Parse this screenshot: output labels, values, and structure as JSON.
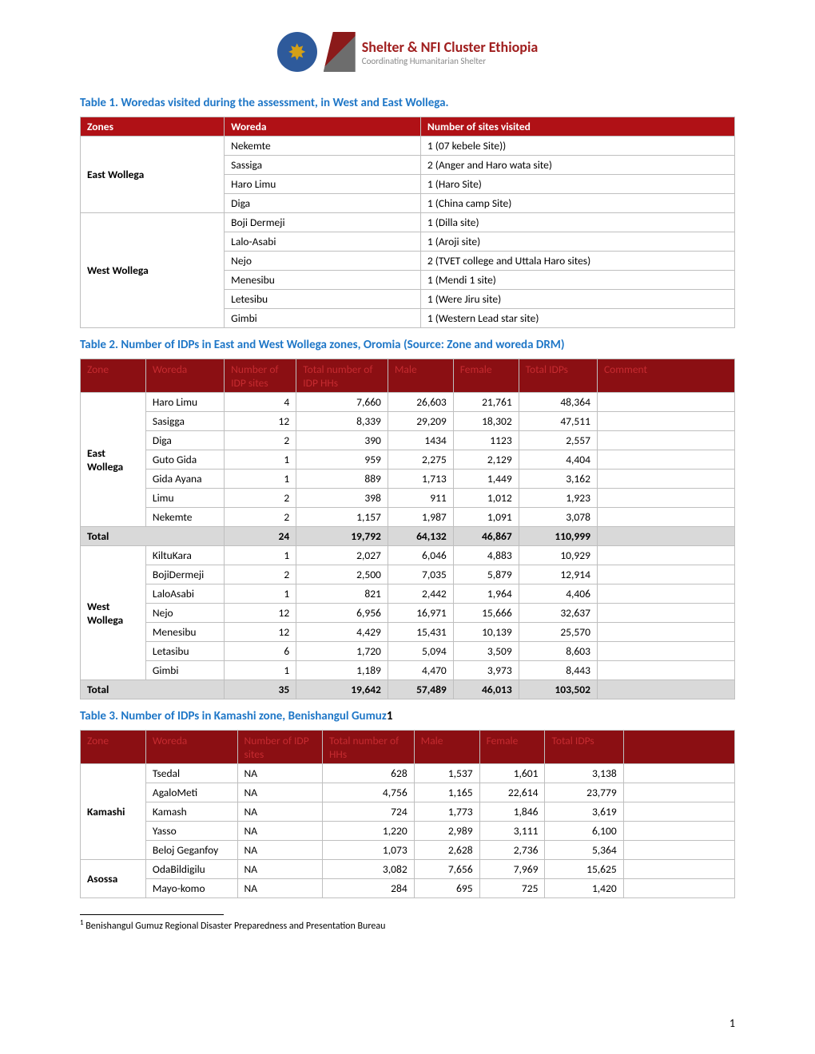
{
  "logo": {
    "title": "Shelter & NFI Cluster Ethiopia",
    "subtitle": "Coordinating Humanitarian Shelter"
  },
  "table1": {
    "title": "Table 1. Woredas visited during the assessment, in West and East Wollega.",
    "headers": [
      "Zones",
      "Woreda",
      "Number of sites visited"
    ],
    "groups": [
      {
        "zone": "East Wollega",
        "rows": [
          {
            "woreda": "Nekemte",
            "sites": "1 (07 kebele Site))"
          },
          {
            "woreda": "Sassiga",
            "sites": "2 (Anger and Haro wata site)"
          },
          {
            "woreda": "Haro Limu",
            "sites": "1 (Haro Site)"
          },
          {
            "woreda": "Diga",
            "sites": "1 (China camp Site)"
          }
        ]
      },
      {
        "zone": "West Wollega",
        "rows": [
          {
            "woreda": "Boji Dermeji",
            "sites": "1 (Dilla site)"
          },
          {
            "woreda": "Lalo-Asabi",
            "sites": "1 (Aroji site)"
          },
          {
            "woreda": "Nejo",
            "sites": "2 (TVET college and Uttala Haro sites)"
          },
          {
            "woreda": "Menesibu",
            "sites": "1 (Mendi 1 site)"
          },
          {
            "woreda": "Letesibu",
            "sites": "1 (Were Jiru site)"
          },
          {
            "woreda": "Gimbi",
            "sites": "1 (Western Lead star site)"
          }
        ]
      }
    ]
  },
  "table2": {
    "title": "Table 2. Number of IDPs in East and West Wollega zones, Oromia (Source: Zone and woreda DRM)",
    "headers": [
      "Zone",
      "Woreda",
      "Number of IDP sites",
      "Total number of IDP HHs",
      "Male",
      "Female",
      "Total IDPs",
      "Comment"
    ],
    "groups": [
      {
        "zone": "East Wollega",
        "rows": [
          {
            "woreda": "Haro Limu",
            "sites": "4",
            "hhs": "7,660",
            "male": "26,603",
            "female": "21,761",
            "total": "48,364",
            "comment": ""
          },
          {
            "woreda": "Sasigga",
            "sites": "12",
            "hhs": "8,339",
            "male": "29,209",
            "female": "18,302",
            "total": "47,511",
            "comment": ""
          },
          {
            "woreda": "Diga",
            "sites": "2",
            "hhs": "390",
            "male": "1434",
            "female": "1123",
            "total": "2,557",
            "comment": ""
          },
          {
            "woreda": "Guto Gida",
            "sites": "1",
            "hhs": "959",
            "male": "2,275",
            "female": "2,129",
            "total": "4,404",
            "comment": ""
          },
          {
            "woreda": "Gida Ayana",
            "sites": "1",
            "hhs": "889",
            "male": "1,713",
            "female": "1,449",
            "total": "3,162",
            "comment": ""
          },
          {
            "woreda": "Limu",
            "sites": "2",
            "hhs": "398",
            "male": "911",
            "female": "1,012",
            "total": "1,923",
            "comment": ""
          },
          {
            "woreda": "Nekemte",
            "sites": "2",
            "hhs": "1,157",
            "male": "1,987",
            "female": "1,091",
            "total": "3,078",
            "comment": ""
          }
        ],
        "total": {
          "label": "Total",
          "sites": "24",
          "hhs": "19,792",
          "male": "64,132",
          "female": "46,867",
          "total": "110,999",
          "comment": ""
        }
      },
      {
        "zone": "West Wollega",
        "rows": [
          {
            "woreda": "KiltuKara",
            "sites": "1",
            "hhs": "2,027",
            "male": "6,046",
            "female": "4,883",
            "total": "10,929",
            "comment": ""
          },
          {
            "woreda": "BojiDermeji",
            "sites": "2",
            "hhs": "2,500",
            "male": "7,035",
            "female": "5,879",
            "total": "12,914",
            "comment": ""
          },
          {
            "woreda": "LaloAsabi",
            "sites": "1",
            "hhs": "821",
            "male": "2,442",
            "female": "1,964",
            "total": "4,406",
            "comment": ""
          },
          {
            "woreda": "Nejo",
            "sites": "12",
            "hhs": "6,956",
            "male": "16,971",
            "female": "15,666",
            "total": "32,637",
            "comment": ""
          },
          {
            "woreda": "Menesibu",
            "sites": "12",
            "hhs": "4,429",
            "male": "15,431",
            "female": "10,139",
            "total": "25,570",
            "comment": ""
          },
          {
            "woreda": "Letasibu",
            "sites": "6",
            "hhs": "1,720",
            "male": "5,094",
            "female": "3,509",
            "total": "8,603",
            "comment": ""
          },
          {
            "woreda": "Gimbi",
            "sites": "1",
            "hhs": "1,189",
            "male": "4,470",
            "female": "3,973",
            "total": "8,443",
            "comment": ""
          }
        ],
        "total": {
          "label": "Total",
          "sites": "35",
          "hhs": "19,642",
          "male": "57,489",
          "female": "46,013",
          "total": "103,502",
          "comment": ""
        }
      }
    ]
  },
  "table3": {
    "title_prefix": "Table 3. Number of IDPs in Kamashi zone, Benishangul Gumuz",
    "footref": "1",
    "headers": [
      "Zone",
      "Woreda",
      "Number of IDP sites",
      "Total number of HHs",
      "Male",
      "Female",
      "Total IDPs",
      ""
    ],
    "groups": [
      {
        "zone": "Kamashi",
        "rows": [
          {
            "woreda": "Tsedal",
            "sites": "NA",
            "hhs": "628",
            "male": "1,537",
            "female": "1,601",
            "total": "3,138",
            "comment": ""
          },
          {
            "woreda": "AgaloMeti",
            "sites": "NA",
            "hhs": "4,756",
            "male": "1,165",
            "female": "22,614",
            "total": "23,779",
            "comment": ""
          },
          {
            "woreda": "Kamash",
            "sites": "NA",
            "hhs": "724",
            "male": "1,773",
            "female": "1,846",
            "total": "3,619",
            "comment": ""
          },
          {
            "woreda": "Yasso",
            "sites": "NA",
            "hhs": "1,220",
            "male": "2,989",
            "female": "3,111",
            "total": "6,100",
            "comment": ""
          },
          {
            "woreda": "Beloj Geganfoy",
            "sites": "NA",
            "hhs": "1,073",
            "male": "2,628",
            "female": "2,736",
            "total": "5,364",
            "comment": ""
          }
        ]
      },
      {
        "zone": "Asossa",
        "rows": [
          {
            "woreda": "OdaBildigilu",
            "sites": "NA",
            "hhs": "3,082",
            "male": "7,656",
            "female": "7,969",
            "total": "15,625",
            "comment": ""
          },
          {
            "woreda": "Mayo-komo",
            "sites": "NA",
            "hhs": "284",
            "male": "695",
            "female": "725",
            "total": "1,420",
            "comment": ""
          }
        ]
      }
    ]
  },
  "footnote": {
    "marker": "1",
    "text": " Benishangul Gumuz Regional Disaster Preparedness and Presentation Bureau"
  },
  "page_number": "1",
  "colors": {
    "title_blue": "#1f77c7",
    "header_red": "#b01116",
    "header_darkred_bg": "#8b0f13",
    "header_darkred_text": "#c52b30",
    "total_gray": "#d9d9d9",
    "border": "#bfbfbf"
  },
  "col_widths": {
    "table1": [
      "22%",
      "30%",
      "48%"
    ],
    "table2": [
      "10%",
      "12%",
      "11%",
      "14%",
      "10%",
      "10%",
      "12%",
      "21%"
    ],
    "table3": [
      "10%",
      "14%",
      "13%",
      "14%",
      "10%",
      "10%",
      "12%",
      "17%"
    ]
  }
}
